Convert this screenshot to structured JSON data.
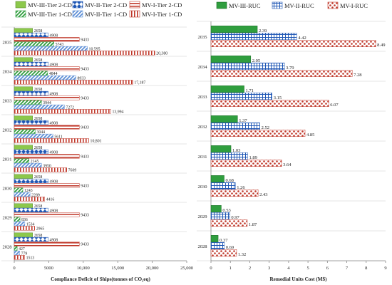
{
  "colors": {
    "green": "#2f9e3e",
    "light_green": "#8cc84b",
    "blue": "#1f57b5",
    "light_blue": "#5e8fd6",
    "red": "#c0392b",
    "light_red": "#e8a093",
    "axis": "#888888",
    "grid": "#cccccc"
  },
  "chart_data": [
    {
      "type": "bar",
      "orientation": "horizontal",
      "xlabel": "Compliance Deficit of Ships(tonnes of CO₂eq)",
      "ylabel": "",
      "xlim": [
        0,
        25000
      ],
      "xticks": [
        "0",
        "5000",
        "10,000",
        "15,000",
        "20,000",
        "25,000"
      ],
      "xtick_values": [
        0,
        5000,
        10000,
        15000,
        20000,
        25000
      ],
      "legend_position": "top",
      "categories": [
        "2035",
        "2034",
        "2033",
        "2032",
        "2031",
        "2030",
        "2029",
        "2028"
      ],
      "series": [
        {
          "name": "MV-III-Tier 2-CD",
          "pattern": "solid-lightgreen",
          "values": [
            2658,
            2658,
            2658,
            2658,
            2658,
            2658,
            2658,
            2658
          ],
          "labels": [
            "2658",
            "2658",
            "2658",
            "2658",
            "2658",
            "2658",
            "2658",
            "2658"
          ]
        },
        {
          "name": "MV-II-Tier 2-CD",
          "pattern": "diamond-blue",
          "values": [
            4908,
            4908,
            4908,
            4908,
            4908,
            4908,
            4908,
            4908
          ],
          "labels": [
            "4908",
            "4908",
            "4908",
            "4908",
            "4908",
            "4908",
            "4908",
            "4908"
          ]
        },
        {
          "name": "MV-I-Tier 2-CD",
          "pattern": "hstripe-red",
          "values": [
            9433,
            9433,
            9433,
            9433,
            9433,
            9433,
            9433,
            9433
          ],
          "labels": [
            "9433",
            "9433",
            "9433",
            "9433",
            "9433",
            "9433",
            "9433",
            "9433"
          ]
        },
        {
          "name": "MV-III-Tier 1-CD",
          "pattern": "diag-green",
          "values": [
            5743,
            4844,
            3944,
            3044,
            2145,
            1243,
            836,
            427
          ],
          "labels": [
            "5743",
            "4844",
            "3944",
            "3044",
            "2145",
            "1243",
            "836",
            "427"
          ]
        },
        {
          "name": "MV-II-Tier 1-CD",
          "pattern": "diag-blue",
          "values": [
            10595,
            8933,
            7272,
            5611,
            3950,
            2289,
            1534,
            779
          ],
          "labels": [
            "10,595",
            "8933",
            "7272",
            "5611",
            "3950",
            "2289",
            "1534",
            "779"
          ]
        },
        {
          "name": "MV-I-Tier 1-CD",
          "pattern": "vstripe-red",
          "values": [
            20380,
            17187,
            13994,
            10801,
            7609,
            4416,
            2965,
            1513
          ],
          "labels": [
            "20,380",
            "17,187",
            "13,994",
            "10,801",
            "7609",
            "4416",
            "2965",
            "1513"
          ]
        }
      ]
    },
    {
      "type": "bar",
      "orientation": "horizontal",
      "xlabel": "Remedial Units Cost (M$)",
      "ylabel": "",
      "xlim": [
        0,
        9
      ],
      "xticks": [
        "0",
        "1",
        "2",
        "3",
        "4",
        "5",
        "6",
        "7",
        "8",
        "9"
      ],
      "xtick_values": [
        0,
        1,
        2,
        3,
        4,
        5,
        6,
        7,
        8,
        9
      ],
      "legend_position": "top",
      "categories": [
        "2035",
        "2034",
        "2033",
        "2032",
        "2031",
        "2030",
        "2029",
        "2028"
      ],
      "series": [
        {
          "name": "MV-III-RUC",
          "pattern": "solid-green",
          "values": [
            2.39,
            2.05,
            1.71,
            1.37,
            1.03,
            0.68,
            0.53,
            0.37
          ],
          "labels": [
            "2.39",
            "2.05",
            "1.71",
            "1.37",
            "1.03",
            "0.68",
            "0.53",
            "0.37"
          ]
        },
        {
          "name": "MV-II-RUC",
          "pattern": "grid-blue",
          "values": [
            4.42,
            3.79,
            3.15,
            2.52,
            1.89,
            1.26,
            0.97,
            0.69
          ],
          "labels": [
            "4.42",
            "3.79",
            "3.15",
            "2.52",
            "1.89",
            "1.26",
            "0.97",
            "0.69"
          ]
        },
        {
          "name": "MV-I-RUC",
          "pattern": "dots-red",
          "values": [
            8.49,
            7.28,
            6.07,
            4.85,
            3.64,
            2.43,
            1.87,
            1.32
          ],
          "labels": [
            "8.49",
            "7.28",
            "6.07",
            "4.85",
            "3.64",
            "2.43",
            "1.87",
            "1.32"
          ]
        }
      ]
    }
  ]
}
